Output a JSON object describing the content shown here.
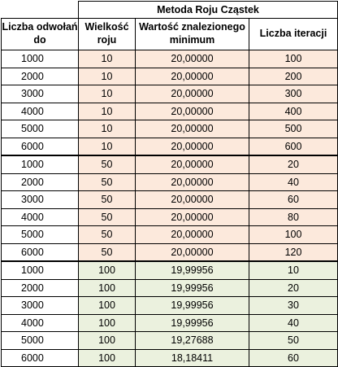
{
  "table": {
    "group_header": "Metoda Roju Cząstek",
    "columns": [
      "Liczba odwołań do",
      "Wielkość roju",
      "Wartość znalezionego minimum",
      "Liczba iteracji"
    ],
    "row_groups": [
      {
        "fill": "#fce9dc",
        "rows": [
          [
            "1000",
            "10",
            "20,00000",
            "100"
          ],
          [
            "2000",
            "10",
            "20,00000",
            "200"
          ],
          [
            "3000",
            "10",
            "20,00000",
            "300"
          ],
          [
            "4000",
            "10",
            "20,00000",
            "400"
          ],
          [
            "5000",
            "10",
            "20,00000",
            "500"
          ],
          [
            "6000",
            "10",
            "20,00000",
            "600"
          ]
        ]
      },
      {
        "fill": "#fce9dc",
        "rows": [
          [
            "1000",
            "50",
            "20,00000",
            "20"
          ],
          [
            "2000",
            "50",
            "20,00000",
            "40"
          ],
          [
            "3000",
            "50",
            "20,00000",
            "60"
          ],
          [
            "4000",
            "50",
            "20,00000",
            "80"
          ],
          [
            "5000",
            "50",
            "20,00000",
            "100"
          ],
          [
            "6000",
            "50",
            "20,00000",
            "120"
          ]
        ]
      },
      {
        "fill": "#ebf1de",
        "rows": [
          [
            "1000",
            "100",
            "19,99956",
            "10"
          ],
          [
            "2000",
            "100",
            "19,99956",
            "20"
          ],
          [
            "3000",
            "100",
            "19,99956",
            "30"
          ],
          [
            "4000",
            "100",
            "19,99956",
            "40"
          ],
          [
            "5000",
            "100",
            "19,27688",
            "50"
          ],
          [
            "6000",
            "100",
            "18,18411",
            "60"
          ]
        ]
      }
    ]
  }
}
